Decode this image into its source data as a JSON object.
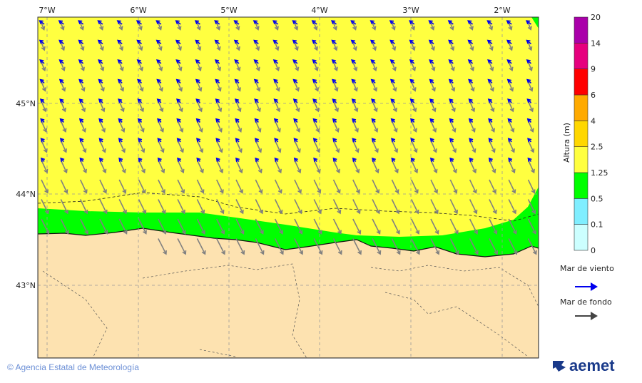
{
  "map": {
    "lon_ticks": [
      "7°W",
      "6°W",
      "5°W",
      "4°W",
      "3°W",
      "2°W"
    ],
    "lat_ticks": [
      "45°N",
      "44°N",
      "43°N"
    ],
    "colors": {
      "sea_yellow": "#ffff40",
      "sea_green": "#00ff00",
      "land": "#fde2b0",
      "wind_arrow": "#0000ee",
      "swell_arrow": "#808080"
    },
    "wind_direction": "towards west-northwest offshore, turning southwest near coast",
    "swell_direction": "towards south-southeast"
  },
  "colorbar": {
    "title": "Altura (m)",
    "bounds": [
      "0",
      "0.1",
      "0.5",
      "1.25",
      "2.5",
      "4",
      "6",
      "9",
      "14",
      "20"
    ],
    "colors": [
      "#ccffff",
      "#80eeff",
      "#00ff00",
      "#ffff40",
      "#ffd700",
      "#ffaa00",
      "#ff0000",
      "#e6007e",
      "#aa00aa"
    ]
  },
  "legend": {
    "wind_label": "Mar de viento",
    "swell_label": "Mar de fondo"
  },
  "footer": {
    "credit": "© Agencia Estatal de Meteorología",
    "logo": "aemet"
  }
}
